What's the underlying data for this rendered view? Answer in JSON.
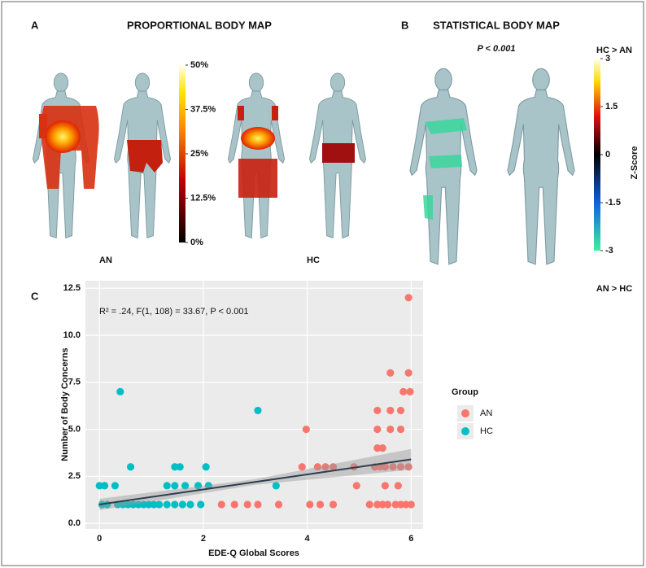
{
  "panel_a": {
    "label": "A",
    "title": "PROPORTIONAL BODY MAP",
    "group_left": "AN",
    "group_right": "HC",
    "colorbar": {
      "lim": [
        0,
        50
      ],
      "ticks": [
        {
          "value": 50,
          "label": "50%"
        },
        {
          "value": 37.5,
          "label": "37.5%"
        },
        {
          "value": 25,
          "label": "25%"
        },
        {
          "value": 12.5,
          "label": "12.5%"
        },
        {
          "value": 0,
          "label": "0%"
        }
      ]
    }
  },
  "panel_b": {
    "label": "B",
    "title": "STATISTICAL BODY MAP",
    "subtitle": "P < 0.001",
    "top_label": "HC > AN",
    "bottom_label": "AN > HC",
    "colorbar": {
      "title": "Z-Score",
      "lim": [
        -3,
        3
      ],
      "ticks": [
        3,
        1.5,
        0,
        -1.5,
        -3
      ]
    }
  },
  "chart_data": {
    "type": "scatter",
    "panel_label": "C",
    "annotation": "R² = .24, F(1, 108) = 33.67, P < 0.001",
    "x_label": "EDE-Q Global Scores",
    "y_label": "Number of Body Concerns",
    "legend_title": "Group",
    "legend": "right",
    "xlim": [
      -0.27,
      6.23
    ],
    "xticks": [
      0,
      2,
      4,
      6
    ],
    "ylim": [
      -0.3,
      12.9
    ],
    "yticks": [
      {
        "value": 0,
        "label": "0.0"
      },
      {
        "value": 2.5,
        "label": "2.5"
      },
      {
        "value": 5,
        "label": "5.0"
      },
      {
        "value": 7.5,
        "label": "7.5"
      },
      {
        "value": 10,
        "label": "10.0"
      },
      {
        "value": 12.5,
        "label": "12.5"
      }
    ],
    "grid": true,
    "series": [
      {
        "name": "AN",
        "color": "#f8766d",
        "x": [
          2.35,
          2.6,
          2.85,
          3.05,
          3.45,
          4.05,
          4.25,
          4.5,
          5.2,
          5.35,
          5.45,
          5.55,
          5.7,
          5.8,
          5.9,
          6.0,
          3.9,
          4.2,
          4.35,
          4.5,
          4.9,
          5.3,
          5.4,
          5.5,
          5.65,
          5.8,
          5.95,
          4.95,
          5.5,
          5.75,
          5.35,
          5.45,
          3.98,
          5.35,
          5.6,
          5.8,
          5.35,
          5.6,
          5.8,
          5.85,
          5.98,
          5.6,
          5.95,
          5.95
        ],
        "values": [
          1,
          1,
          1,
          1,
          1,
          1,
          1,
          1,
          1,
          1,
          1,
          1,
          1,
          1,
          1,
          1,
          3,
          3,
          3,
          3,
          3,
          3,
          3,
          3,
          3,
          3,
          3,
          2,
          2,
          2,
          4,
          4,
          5,
          5,
          5,
          5,
          6,
          6,
          6,
          7,
          7,
          8,
          8,
          12
        ]
      },
      {
        "name": "HC",
        "color": "#00bfc4",
        "x": [
          0.05,
          0.15,
          0.35,
          0.45,
          0.55,
          0.65,
          0.75,
          0.85,
          0.95,
          1.05,
          1.15,
          1.3,
          1.45,
          1.6,
          1.75,
          1.95,
          0.0,
          0.1,
          0.3,
          1.3,
          1.45,
          1.65,
          1.9,
          2.1,
          0.6,
          1.45,
          1.55,
          2.05,
          0.4,
          3.05,
          3.4
        ],
        "values": [
          1,
          1,
          1,
          1,
          1,
          1,
          1,
          1,
          1,
          1,
          1,
          1,
          1,
          1,
          1,
          1,
          2,
          2,
          2,
          2,
          2,
          2,
          2,
          2,
          3,
          3,
          3,
          3,
          7,
          6,
          2
        ]
      }
    ],
    "fit": {
      "color": "#2c3e50",
      "x": [
        0,
        3,
        6
      ],
      "values": [
        1.0,
        2.2,
        3.4
      ],
      "lower": [
        0.7,
        2.05,
        2.85
      ],
      "upper": [
        1.3,
        2.35,
        3.95
      ]
    }
  }
}
